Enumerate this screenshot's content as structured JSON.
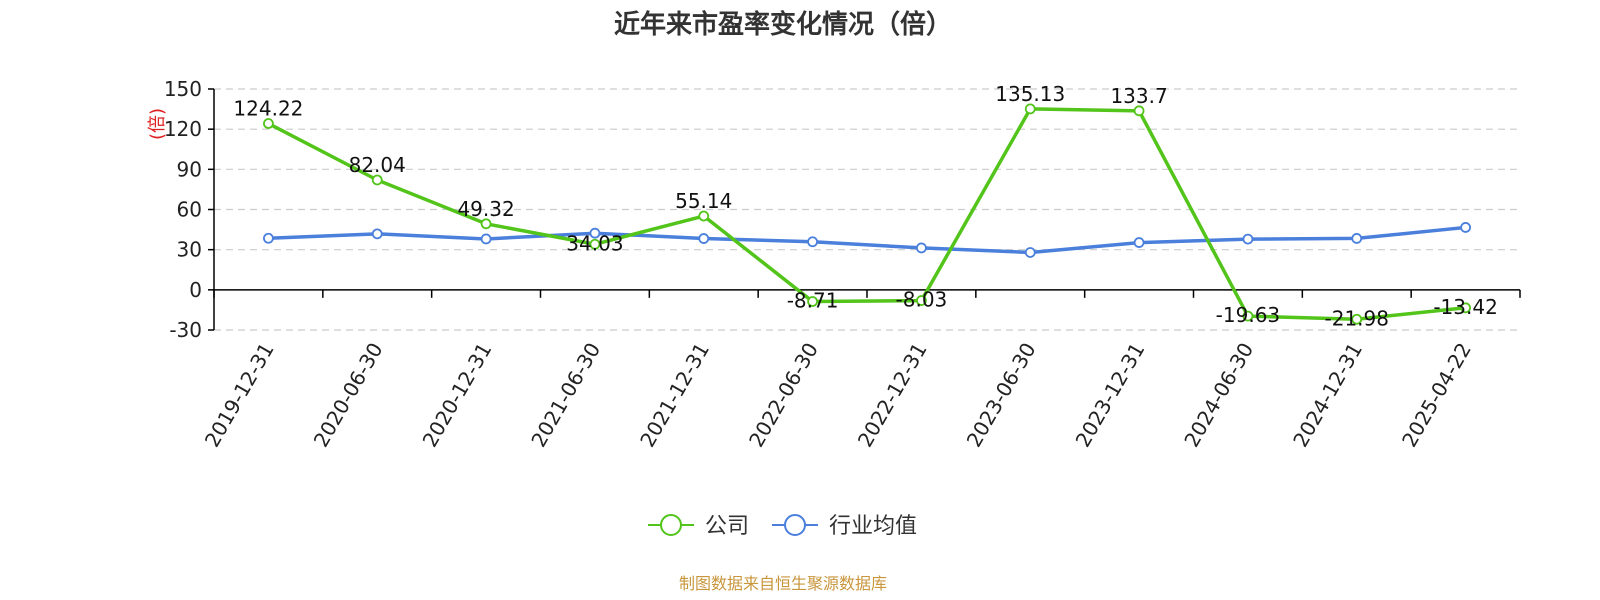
{
  "chart_data": {
    "type": "line",
    "title": "近年来市盈率变化情况（倍）",
    "ylabel": "(倍)",
    "ylim": [
      -30,
      150
    ],
    "yticks": [
      -30,
      0,
      30,
      60,
      90,
      120,
      150
    ],
    "grid": true,
    "legend_position": "bottom-center",
    "categories": [
      "2019-12-31",
      "2020-06-30",
      "2020-12-31",
      "2021-06-30",
      "2021-12-31",
      "2022-06-30",
      "2022-12-31",
      "2023-06-30",
      "2023-12-31",
      "2024-06-30",
      "2024-12-31",
      "2025-04-22"
    ],
    "series": [
      {
        "name": "公司",
        "color": "#52c41a",
        "values": [
          124.22,
          82.04,
          49.32,
          34.03,
          55.14,
          -8.71,
          -8.03,
          135.13,
          133.7,
          -19.63,
          -21.98,
          -13.42
        ],
        "labels": [
          "124.22",
          "82.04",
          "49.32",
          "34.03",
          "55.14",
          "-8.71",
          "-8.03",
          "135.13",
          "133.7",
          "-19.63",
          "-21.98",
          "-13.42"
        ]
      },
      {
        "name": "行业均值",
        "color": "#4a7fdc",
        "values": [
          38.5,
          41.8,
          38.0,
          42.3,
          38.3,
          35.9,
          31.3,
          27.9,
          35.3,
          37.9,
          38.4,
          46.6
        ]
      }
    ],
    "source": "制图数据来自恒生聚源数据库",
    "colors": {
      "axis": "#000000",
      "grid": "#cccccc",
      "unit": "#e02020",
      "source": "#c8963c"
    }
  }
}
